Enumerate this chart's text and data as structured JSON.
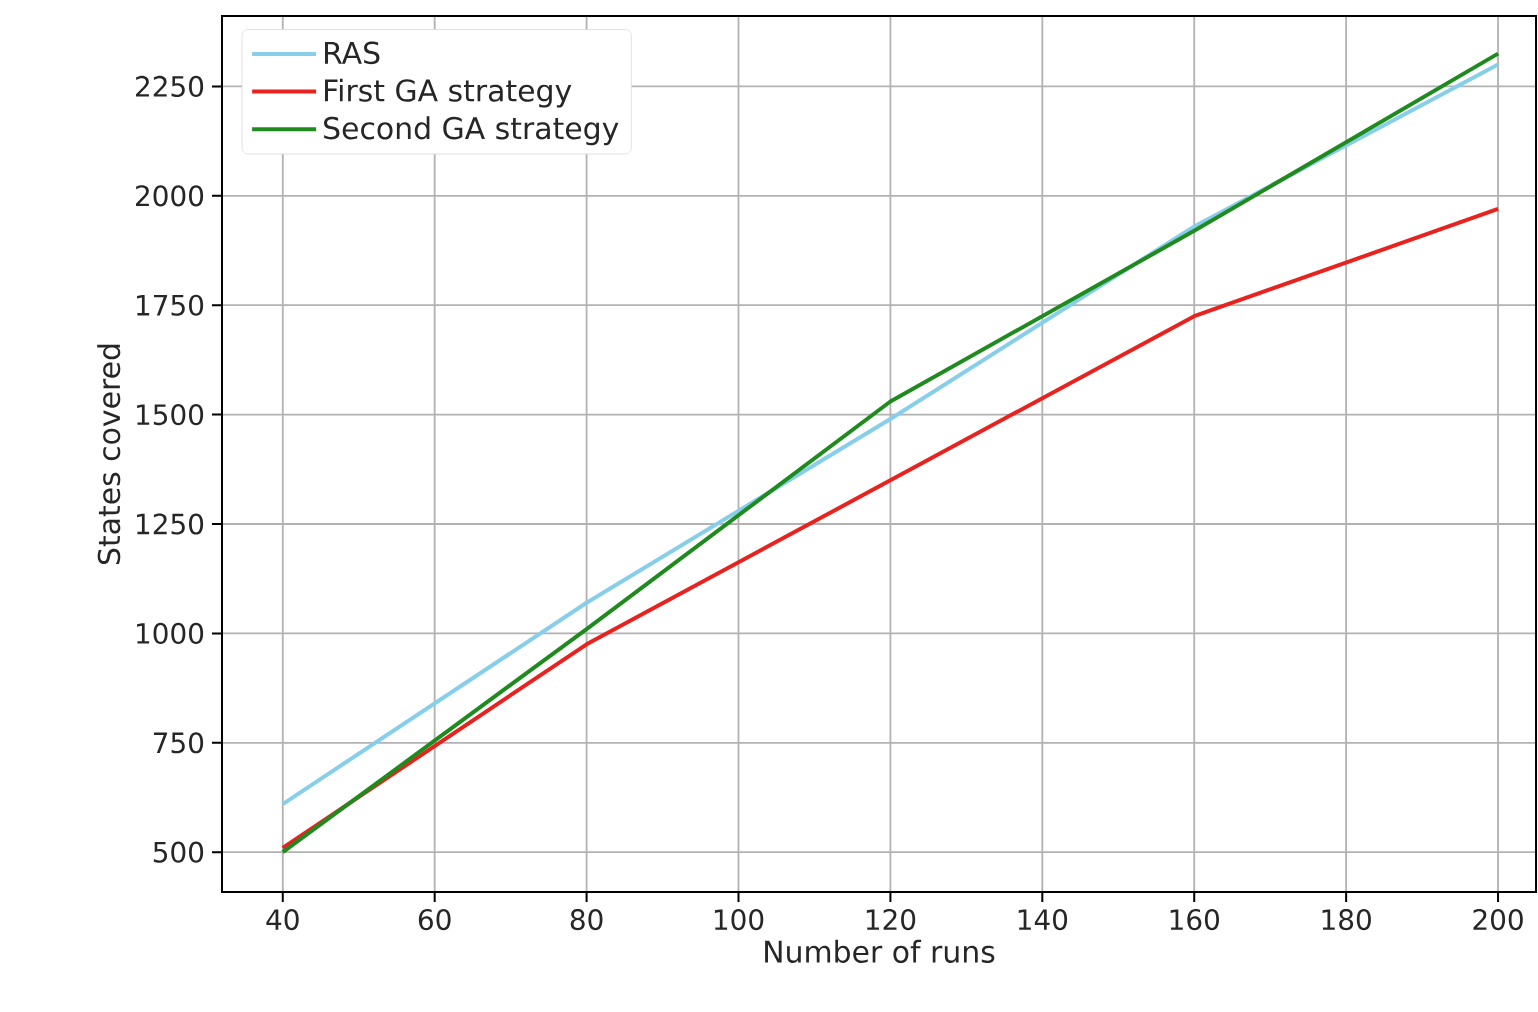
{
  "chart_data": {
    "type": "line",
    "xlabel": "Number of runs",
    "ylabel": "States covered",
    "xlim": [
      32,
      205
    ],
    "ylim": [
      409,
      2411
    ],
    "xticks": [
      40,
      60,
      80,
      100,
      120,
      140,
      160,
      180,
      200
    ],
    "yticks": [
      500,
      750,
      1000,
      1250,
      1500,
      1750,
      2000,
      2250
    ],
    "grid": true,
    "legend": "top left",
    "x": [
      40,
      80,
      120,
      160,
      200
    ],
    "series": [
      {
        "name": "RAS",
        "color": "#87ceeb",
        "values": [
          610,
          1070,
          1490,
          1930,
          2300
        ]
      },
      {
        "name": "First GA strategy",
        "color": "#e8231f",
        "values": [
          510,
          975,
          1350,
          1725,
          1970
        ]
      },
      {
        "name": "Second GA strategy",
        "color": "#1f8b1f",
        "values": [
          500,
          1010,
          1530,
          1920,
          2325
        ]
      }
    ]
  }
}
